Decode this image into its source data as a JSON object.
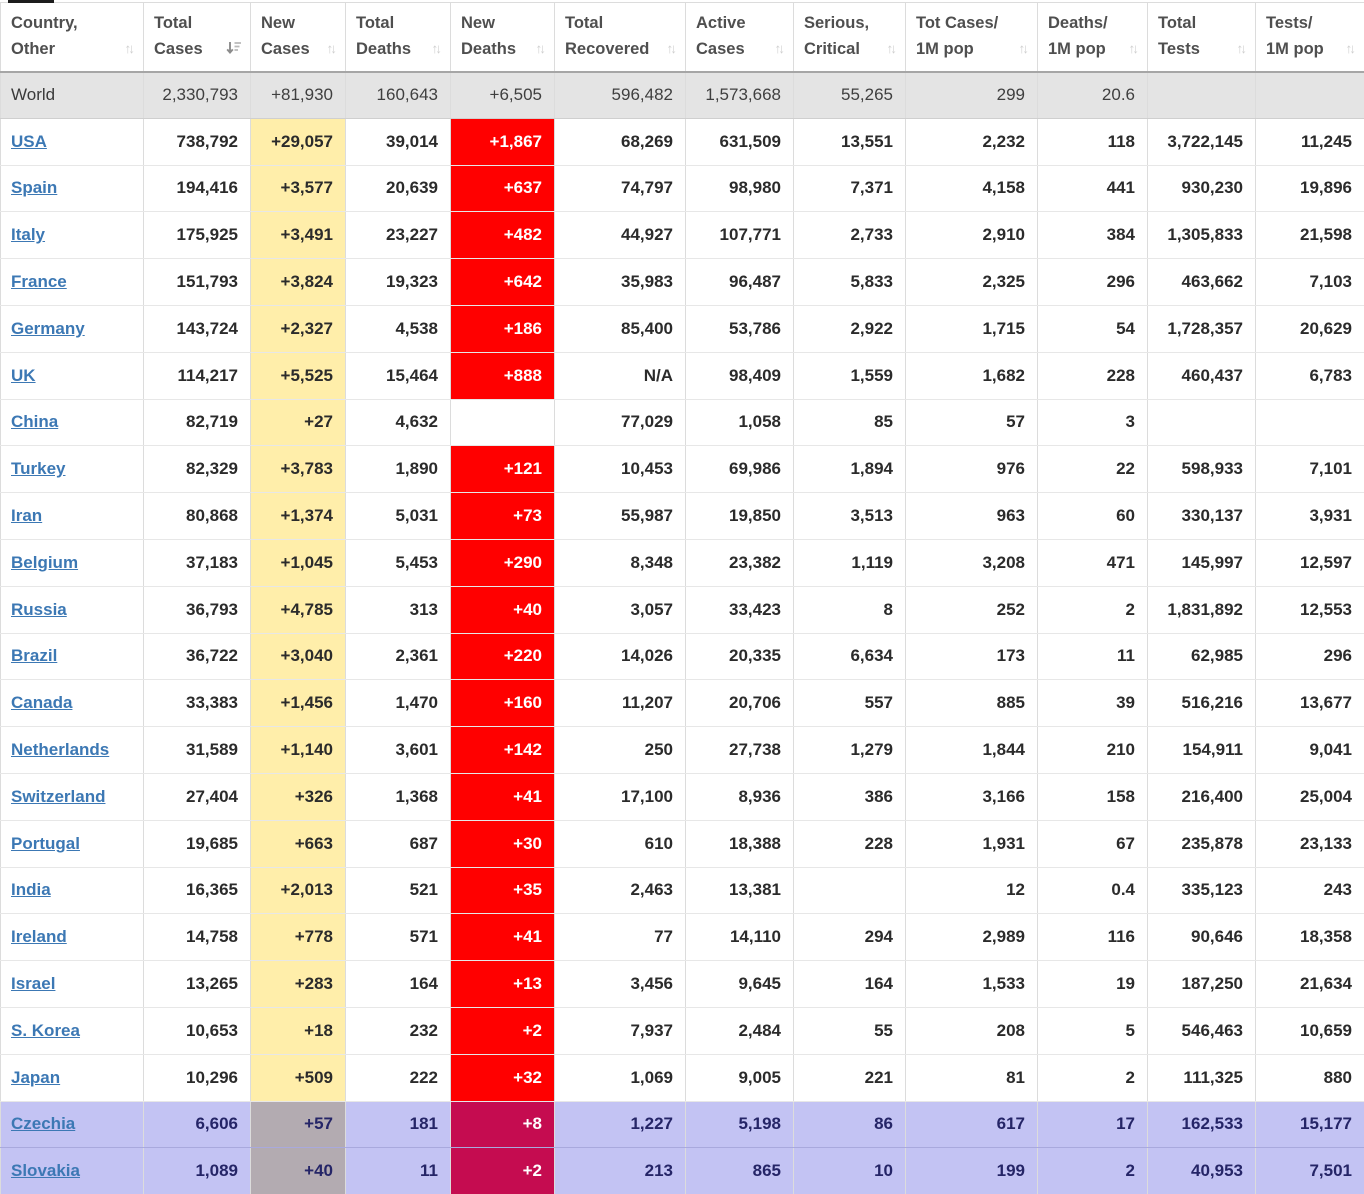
{
  "colors": {
    "link": "#3c78b4",
    "new_cases_bg": "#ffeeaa",
    "new_deaths_bg": "#ff0000",
    "world_row_bg": "#e4e4e4",
    "highlight_row_bg": "#c3c3f3",
    "highlight_new_cases_bg": "#b3abb1",
    "highlight_new_deaths_bg": "#c50c50"
  },
  "icons": {
    "sort_unsorted": "sort-updown-icon",
    "sort_unsorted_glyph": "↑↓",
    "sort_active": "sort-amount-desc-icon"
  },
  "table": {
    "columns": [
      {
        "key": "country",
        "label1": "Country,",
        "label2": "Other",
        "sort": "unsorted"
      },
      {
        "key": "total_cases",
        "label1": "Total",
        "label2": "Cases",
        "sort": "desc"
      },
      {
        "key": "new_cases",
        "label1": "New",
        "label2": "Cases",
        "sort": "unsorted"
      },
      {
        "key": "total_deaths",
        "label1": "Total",
        "label2": "Deaths",
        "sort": "unsorted"
      },
      {
        "key": "new_deaths",
        "label1": "New",
        "label2": "Deaths",
        "sort": "unsorted"
      },
      {
        "key": "total_recovered",
        "label1": "Total",
        "label2": "Recovered",
        "sort": "unsorted"
      },
      {
        "key": "active_cases",
        "label1": "Active",
        "label2": "Cases",
        "sort": "unsorted"
      },
      {
        "key": "serious_critical",
        "label1": "Serious,",
        "label2": "Critical",
        "sort": "unsorted"
      },
      {
        "key": "cases_per_1m",
        "label1": "Tot Cases/",
        "label2": "1M pop",
        "sort": "unsorted"
      },
      {
        "key": "deaths_per_1m",
        "label1": "Deaths/",
        "label2": "1M pop",
        "sort": "unsorted"
      },
      {
        "key": "total_tests",
        "label1": "Total",
        "label2": "Tests",
        "sort": "unsorted"
      },
      {
        "key": "tests_per_1m",
        "label1": "Tests/",
        "label2": "1M pop",
        "sort": "unsorted"
      }
    ],
    "world_row": {
      "country": "World",
      "total_cases": "2,330,793",
      "new_cases": "+81,930",
      "total_deaths": "160,643",
      "new_deaths": "+6,505",
      "total_recovered": "596,482",
      "active_cases": "1,573,668",
      "serious_critical": "55,265",
      "cases_per_1m": "299",
      "deaths_per_1m": "20.6",
      "total_tests": "",
      "tests_per_1m": ""
    },
    "rows": [
      {
        "country": "USA",
        "highlighted": false,
        "total_cases": "738,792",
        "new_cases": "+29,057",
        "total_deaths": "39,014",
        "new_deaths": "+1,867",
        "total_recovered": "68,269",
        "active_cases": "631,509",
        "serious_critical": "13,551",
        "cases_per_1m": "2,232",
        "deaths_per_1m": "118",
        "total_tests": "3,722,145",
        "tests_per_1m": "11,245"
      },
      {
        "country": "Spain",
        "highlighted": false,
        "total_cases": "194,416",
        "new_cases": "+3,577",
        "total_deaths": "20,639",
        "new_deaths": "+637",
        "total_recovered": "74,797",
        "active_cases": "98,980",
        "serious_critical": "7,371",
        "cases_per_1m": "4,158",
        "deaths_per_1m": "441",
        "total_tests": "930,230",
        "tests_per_1m": "19,896"
      },
      {
        "country": "Italy",
        "highlighted": false,
        "total_cases": "175,925",
        "new_cases": "+3,491",
        "total_deaths": "23,227",
        "new_deaths": "+482",
        "total_recovered": "44,927",
        "active_cases": "107,771",
        "serious_critical": "2,733",
        "cases_per_1m": "2,910",
        "deaths_per_1m": "384",
        "total_tests": "1,305,833",
        "tests_per_1m": "21,598"
      },
      {
        "country": "France",
        "highlighted": false,
        "total_cases": "151,793",
        "new_cases": "+3,824",
        "total_deaths": "19,323",
        "new_deaths": "+642",
        "total_recovered": "35,983",
        "active_cases": "96,487",
        "serious_critical": "5,833",
        "cases_per_1m": "2,325",
        "deaths_per_1m": "296",
        "total_tests": "463,662",
        "tests_per_1m": "7,103"
      },
      {
        "country": "Germany",
        "highlighted": false,
        "total_cases": "143,724",
        "new_cases": "+2,327",
        "total_deaths": "4,538",
        "new_deaths": "+186",
        "total_recovered": "85,400",
        "active_cases": "53,786",
        "serious_critical": "2,922",
        "cases_per_1m": "1,715",
        "deaths_per_1m": "54",
        "total_tests": "1,728,357",
        "tests_per_1m": "20,629"
      },
      {
        "country": "UK",
        "highlighted": false,
        "total_cases": "114,217",
        "new_cases": "+5,525",
        "total_deaths": "15,464",
        "new_deaths": "+888",
        "total_recovered": "N/A",
        "active_cases": "98,409",
        "serious_critical": "1,559",
        "cases_per_1m": "1,682",
        "deaths_per_1m": "228",
        "total_tests": "460,437",
        "tests_per_1m": "6,783"
      },
      {
        "country": "China",
        "highlighted": false,
        "total_cases": "82,719",
        "new_cases": "+27",
        "total_deaths": "4,632",
        "new_deaths": "",
        "total_recovered": "77,029",
        "active_cases": "1,058",
        "serious_critical": "85",
        "cases_per_1m": "57",
        "deaths_per_1m": "3",
        "total_tests": "",
        "tests_per_1m": ""
      },
      {
        "country": "Turkey",
        "highlighted": false,
        "total_cases": "82,329",
        "new_cases": "+3,783",
        "total_deaths": "1,890",
        "new_deaths": "+121",
        "total_recovered": "10,453",
        "active_cases": "69,986",
        "serious_critical": "1,894",
        "cases_per_1m": "976",
        "deaths_per_1m": "22",
        "total_tests": "598,933",
        "tests_per_1m": "7,101"
      },
      {
        "country": "Iran",
        "highlighted": false,
        "total_cases": "80,868",
        "new_cases": "+1,374",
        "total_deaths": "5,031",
        "new_deaths": "+73",
        "total_recovered": "55,987",
        "active_cases": "19,850",
        "serious_critical": "3,513",
        "cases_per_1m": "963",
        "deaths_per_1m": "60",
        "total_tests": "330,137",
        "tests_per_1m": "3,931"
      },
      {
        "country": "Belgium",
        "highlighted": false,
        "total_cases": "37,183",
        "new_cases": "+1,045",
        "total_deaths": "5,453",
        "new_deaths": "+290",
        "total_recovered": "8,348",
        "active_cases": "23,382",
        "serious_critical": "1,119",
        "cases_per_1m": "3,208",
        "deaths_per_1m": "471",
        "total_tests": "145,997",
        "tests_per_1m": "12,597"
      },
      {
        "country": "Russia",
        "highlighted": false,
        "total_cases": "36,793",
        "new_cases": "+4,785",
        "total_deaths": "313",
        "new_deaths": "+40",
        "total_recovered": "3,057",
        "active_cases": "33,423",
        "serious_critical": "8",
        "cases_per_1m": "252",
        "deaths_per_1m": "2",
        "total_tests": "1,831,892",
        "tests_per_1m": "12,553"
      },
      {
        "country": "Brazil",
        "highlighted": false,
        "total_cases": "36,722",
        "new_cases": "+3,040",
        "total_deaths": "2,361",
        "new_deaths": "+220",
        "total_recovered": "14,026",
        "active_cases": "20,335",
        "serious_critical": "6,634",
        "cases_per_1m": "173",
        "deaths_per_1m": "11",
        "total_tests": "62,985",
        "tests_per_1m": "296"
      },
      {
        "country": "Canada",
        "highlighted": false,
        "total_cases": "33,383",
        "new_cases": "+1,456",
        "total_deaths": "1,470",
        "new_deaths": "+160",
        "total_recovered": "11,207",
        "active_cases": "20,706",
        "serious_critical": "557",
        "cases_per_1m": "885",
        "deaths_per_1m": "39",
        "total_tests": "516,216",
        "tests_per_1m": "13,677"
      },
      {
        "country": "Netherlands",
        "highlighted": false,
        "total_cases": "31,589",
        "new_cases": "+1,140",
        "total_deaths": "3,601",
        "new_deaths": "+142",
        "total_recovered": "250",
        "active_cases": "27,738",
        "serious_critical": "1,279",
        "cases_per_1m": "1,844",
        "deaths_per_1m": "210",
        "total_tests": "154,911",
        "tests_per_1m": "9,041"
      },
      {
        "country": "Switzerland",
        "highlighted": false,
        "total_cases": "27,404",
        "new_cases": "+326",
        "total_deaths": "1,368",
        "new_deaths": "+41",
        "total_recovered": "17,100",
        "active_cases": "8,936",
        "serious_critical": "386",
        "cases_per_1m": "3,166",
        "deaths_per_1m": "158",
        "total_tests": "216,400",
        "tests_per_1m": "25,004"
      },
      {
        "country": "Portugal",
        "highlighted": false,
        "total_cases": "19,685",
        "new_cases": "+663",
        "total_deaths": "687",
        "new_deaths": "+30",
        "total_recovered": "610",
        "active_cases": "18,388",
        "serious_critical": "228",
        "cases_per_1m": "1,931",
        "deaths_per_1m": "67",
        "total_tests": "235,878",
        "tests_per_1m": "23,133"
      },
      {
        "country": "India",
        "highlighted": false,
        "total_cases": "16,365",
        "new_cases": "+2,013",
        "total_deaths": "521",
        "new_deaths": "+35",
        "total_recovered": "2,463",
        "active_cases": "13,381",
        "serious_critical": "",
        "cases_per_1m": "12",
        "deaths_per_1m": "0.4",
        "total_tests": "335,123",
        "tests_per_1m": "243"
      },
      {
        "country": "Ireland",
        "highlighted": false,
        "total_cases": "14,758",
        "new_cases": "+778",
        "total_deaths": "571",
        "new_deaths": "+41",
        "total_recovered": "77",
        "active_cases": "14,110",
        "serious_critical": "294",
        "cases_per_1m": "2,989",
        "deaths_per_1m": "116",
        "total_tests": "90,646",
        "tests_per_1m": "18,358"
      },
      {
        "country": "Israel",
        "highlighted": false,
        "total_cases": "13,265",
        "new_cases": "+283",
        "total_deaths": "164",
        "new_deaths": "+13",
        "total_recovered": "3,456",
        "active_cases": "9,645",
        "serious_critical": "164",
        "cases_per_1m": "1,533",
        "deaths_per_1m": "19",
        "total_tests": "187,250",
        "tests_per_1m": "21,634"
      },
      {
        "country": "S. Korea",
        "highlighted": false,
        "total_cases": "10,653",
        "new_cases": "+18",
        "total_deaths": "232",
        "new_deaths": "+2",
        "total_recovered": "7,937",
        "active_cases": "2,484",
        "serious_critical": "55",
        "cases_per_1m": "208",
        "deaths_per_1m": "5",
        "total_tests": "546,463",
        "tests_per_1m": "10,659"
      },
      {
        "country": "Japan",
        "highlighted": false,
        "total_cases": "10,296",
        "new_cases": "+509",
        "total_deaths": "222",
        "new_deaths": "+32",
        "total_recovered": "1,069",
        "active_cases": "9,005",
        "serious_critical": "221",
        "cases_per_1m": "81",
        "deaths_per_1m": "2",
        "total_tests": "111,325",
        "tests_per_1m": "880"
      },
      {
        "country": "Czechia",
        "highlighted": true,
        "total_cases": "6,606",
        "new_cases": "+57",
        "total_deaths": "181",
        "new_deaths": "+8",
        "total_recovered": "1,227",
        "active_cases": "5,198",
        "serious_critical": "86",
        "cases_per_1m": "617",
        "deaths_per_1m": "17",
        "total_tests": "162,533",
        "tests_per_1m": "15,177"
      },
      {
        "country": "Slovakia",
        "highlighted": true,
        "total_cases": "1,089",
        "new_cases": "+40",
        "total_deaths": "11",
        "new_deaths": "+2",
        "total_recovered": "213",
        "active_cases": "865",
        "serious_critical": "10",
        "cases_per_1m": "199",
        "deaths_per_1m": "2",
        "total_tests": "40,953",
        "tests_per_1m": "7,501"
      }
    ]
  }
}
